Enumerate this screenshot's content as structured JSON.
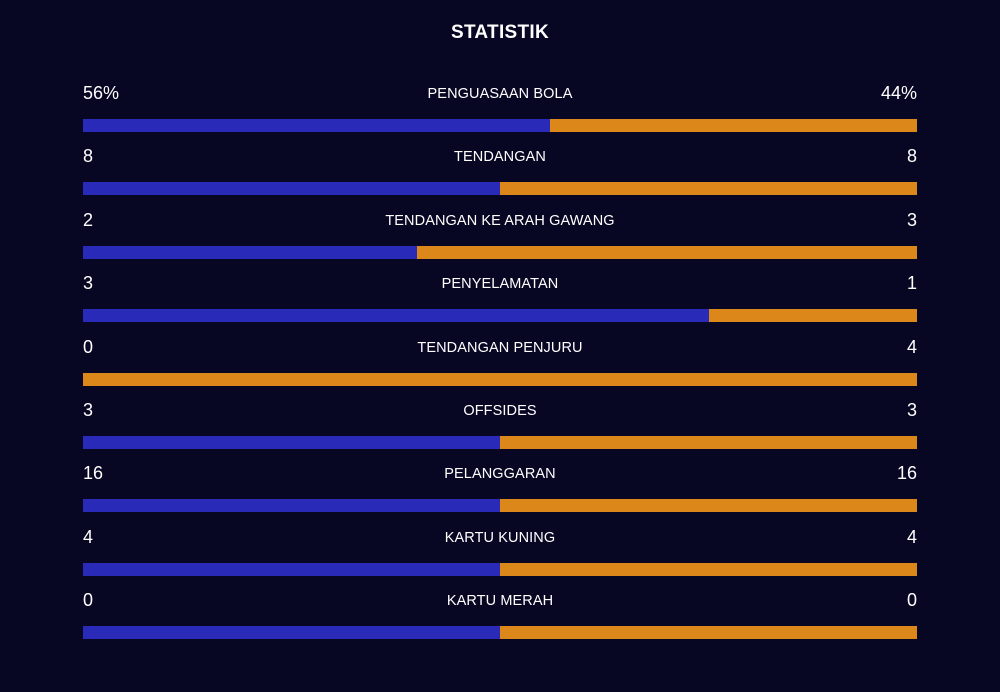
{
  "title": "STATISTIK",
  "colors": {
    "home": "#2a2ab8",
    "away": "#dc8719",
    "background": "#070724"
  },
  "stats": [
    {
      "label": "PENGUASAAN BOLA",
      "home": "56%",
      "away": "44%",
      "home_share": 0.56
    },
    {
      "label": "TENDANGAN",
      "home": "8",
      "away": "8",
      "home_share": 0.5
    },
    {
      "label": "TENDANGAN KE ARAH GAWANG",
      "home": "2",
      "away": "3",
      "home_share": 0.4
    },
    {
      "label": "PENYELAMATAN",
      "home": "3",
      "away": "1",
      "home_share": 0.75
    },
    {
      "label": "TENDANGAN PENJURU",
      "home": "0",
      "away": "4",
      "home_share": 0.0
    },
    {
      "label": "OFFSIDES",
      "home": "3",
      "away": "3",
      "home_share": 0.5
    },
    {
      "label": "PELANGGARAN",
      "home": "16",
      "away": "16",
      "home_share": 0.5
    },
    {
      "label": "KARTU KUNING",
      "home": "4",
      "away": "4",
      "home_share": 0.5
    },
    {
      "label": "KARTU MERAH",
      "home": "0",
      "away": "0",
      "home_share": 0.5
    }
  ]
}
